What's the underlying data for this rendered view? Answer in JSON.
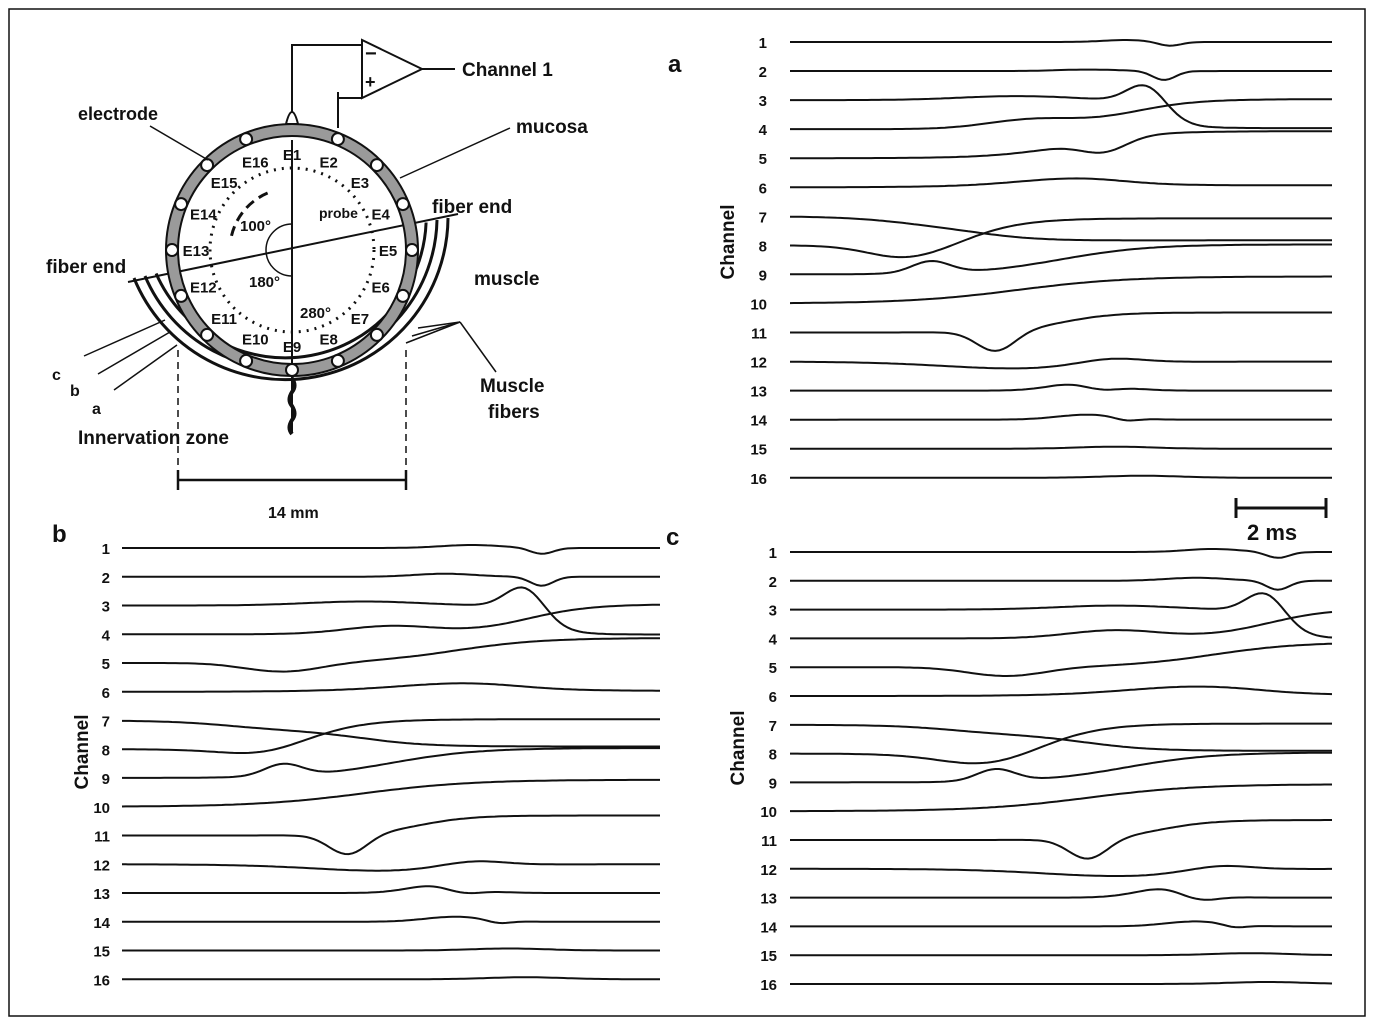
{
  "diagram": {
    "channel_label": "Channel 1",
    "amp_minus": "−",
    "amp_plus": "+",
    "electrode_label": "electrode",
    "mucosa_label": "mucosa",
    "probe_label": "probe",
    "fiber_end_right": "fiber end",
    "fiber_end_left": "fiber end",
    "muscle_label": "muscle",
    "muscle_fibers_line1": "Muscle",
    "muscle_fibers_line2": "fibers",
    "innervation_zone": "Innervation zone",
    "scale_label": "14 mm",
    "fiber_a": "a",
    "fiber_b": "b",
    "fiber_c": "c",
    "angle_100": "100°",
    "angle_180": "180°",
    "angle_280": "280°",
    "electrodes": [
      "E1",
      "E2",
      "E3",
      "E4",
      "E5",
      "E6",
      "E7",
      "E8",
      "E9",
      "E10",
      "E11",
      "E12",
      "E13",
      "E14",
      "E15",
      "E16"
    ]
  },
  "panels": [
    {
      "label": "a",
      "ylabel": "Channel"
    },
    {
      "label": "b",
      "ylabel": "Channel"
    },
    {
      "label": "c",
      "ylabel": "Channel"
    }
  ],
  "channels": [
    "1",
    "2",
    "3",
    "4",
    "5",
    "6",
    "7",
    "8",
    "9",
    "10",
    "11",
    "12",
    "13",
    "14",
    "15",
    "16"
  ],
  "time_scale": "2 ms"
}
